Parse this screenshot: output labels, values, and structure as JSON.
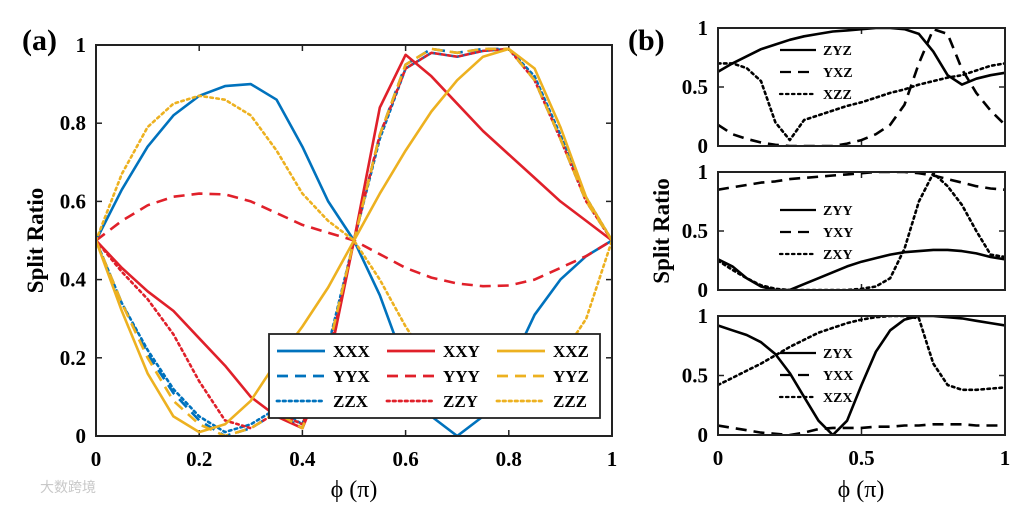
{
  "figure": {
    "watermark": "大数跨境"
  },
  "chart_data": [
    {
      "id": "a",
      "panel_label": "(a)",
      "type": "line",
      "title": "",
      "xlabel": "ϕ (π)",
      "ylabel": "Split Ratio",
      "xlim": [
        0,
        1
      ],
      "ylim": [
        0,
        1
      ],
      "xticks": [
        "0",
        "0.2",
        "0.4",
        "0.6",
        "0.8",
        "1"
      ],
      "yticks": [
        "0",
        "0.2",
        "0.4",
        "0.6",
        "0.8",
        "1"
      ],
      "legend_position": "bottom-right",
      "colors": {
        "blue": "#0072BD",
        "red": "#E0202A",
        "yellow": "#EDB120"
      },
      "x": [
        0,
        0.05,
        0.1,
        0.15,
        0.2,
        0.25,
        0.3,
        0.35,
        0.4,
        0.45,
        0.5,
        0.55,
        0.6,
        0.65,
        0.7,
        0.75,
        0.8,
        0.85,
        0.9,
        0.95,
        1
      ],
      "series": [
        {
          "name": "XXX",
          "color": "blue",
          "dash": "solid",
          "values": [
            0.5,
            0.63,
            0.74,
            0.82,
            0.87,
            0.895,
            0.9,
            0.86,
            0.74,
            0.6,
            0.5,
            0.36,
            0.18,
            0.05,
            0.0,
            0.05,
            0.17,
            0.31,
            0.4,
            0.46,
            0.5
          ]
        },
        {
          "name": "YYX",
          "color": "blue",
          "dash": "dashed",
          "values": [
            0.5,
            0.34,
            0.21,
            0.11,
            0.04,
            0.0,
            0.02,
            0.06,
            0.02,
            0.22,
            0.5,
            0.77,
            0.95,
            0.99,
            0.98,
            0.99,
            0.99,
            0.91,
            0.76,
            0.6,
            0.5
          ]
        },
        {
          "name": "ZZX",
          "color": "blue",
          "dash": "dotted",
          "values": [
            0.5,
            0.34,
            0.22,
            0.12,
            0.05,
            0.01,
            0.03,
            0.07,
            0.03,
            0.23,
            0.5,
            0.76,
            0.94,
            0.98,
            0.97,
            0.985,
            0.99,
            0.92,
            0.77,
            0.61,
            0.5
          ]
        },
        {
          "name": "XXY",
          "color": "red",
          "dash": "solid",
          "values": [
            0.5,
            0.43,
            0.37,
            0.32,
            0.25,
            0.18,
            0.1,
            0.05,
            0.02,
            0.18,
            0.5,
            0.84,
            0.975,
            0.92,
            0.85,
            0.78,
            0.72,
            0.66,
            0.6,
            0.55,
            0.5
          ]
        },
        {
          "name": "YYY",
          "color": "red",
          "dash": "dashed",
          "values": [
            0.5,
            0.55,
            0.59,
            0.612,
            0.62,
            0.618,
            0.6,
            0.57,
            0.54,
            0.52,
            0.5,
            0.465,
            0.43,
            0.405,
            0.39,
            0.383,
            0.385,
            0.4,
            0.43,
            0.46,
            0.5
          ]
        },
        {
          "name": "ZZY",
          "color": "red",
          "dash": "dotted",
          "values": [
            0.5,
            0.42,
            0.35,
            0.26,
            0.14,
            0.04,
            0.02,
            0.06,
            0.03,
            0.2,
            0.5,
            0.77,
            0.94,
            0.98,
            0.97,
            0.985,
            0.99,
            0.91,
            0.76,
            0.6,
            0.5
          ]
        },
        {
          "name": "XXZ",
          "color": "yellow",
          "dash": "solid",
          "values": [
            0.5,
            0.32,
            0.16,
            0.05,
            0.01,
            0.03,
            0.09,
            0.19,
            0.28,
            0.38,
            0.5,
            0.62,
            0.73,
            0.83,
            0.91,
            0.97,
            0.99,
            0.94,
            0.79,
            0.61,
            0.5
          ]
        },
        {
          "name": "YYZ",
          "color": "yellow",
          "dash": "dashed",
          "values": [
            0.5,
            0.34,
            0.2,
            0.09,
            0.03,
            0.0,
            0.02,
            0.06,
            0.02,
            0.22,
            0.5,
            0.77,
            0.95,
            0.99,
            0.98,
            0.99,
            0.99,
            0.91,
            0.76,
            0.6,
            0.5
          ]
        },
        {
          "name": "ZZZ",
          "color": "yellow",
          "dash": "dotted",
          "values": [
            0.5,
            0.67,
            0.79,
            0.85,
            0.87,
            0.86,
            0.82,
            0.73,
            0.62,
            0.55,
            0.5,
            0.4,
            0.28,
            0.18,
            0.12,
            0.07,
            0.05,
            0.11,
            0.2,
            0.3,
            0.5
          ]
        }
      ]
    },
    {
      "id": "b",
      "panel_label": "(b)",
      "type": "line",
      "xlabel": "ϕ (π)",
      "ylabel": "Split Ratio",
      "xlim": [
        0,
        1
      ],
      "xticks": [
        "0",
        "0.5",
        "1"
      ],
      "subplots": [
        {
          "ylim": [
            0,
            1
          ],
          "yticks": [
            "0",
            "0.5",
            "1"
          ],
          "legend_position": "top-left",
          "x": [
            0,
            0.05,
            0.1,
            0.15,
            0.2,
            0.25,
            0.3,
            0.35,
            0.4,
            0.45,
            0.5,
            0.55,
            0.6,
            0.65,
            0.7,
            0.75,
            0.8,
            0.85,
            0.9,
            0.95,
            1
          ],
          "series": [
            {
              "name": "ZYZ",
              "dash": "solid",
              "values": [
                0.63,
                0.7,
                0.76,
                0.82,
                0.86,
                0.9,
                0.93,
                0.95,
                0.97,
                0.98,
                0.99,
                1.0,
                1.0,
                0.99,
                0.95,
                0.8,
                0.6,
                0.52,
                0.57,
                0.6,
                0.62
              ]
            },
            {
              "name": "YXZ",
              "dash": "dashed",
              "values": [
                0.18,
                0.1,
                0.06,
                0.03,
                0.01,
                0.0,
                0.0,
                0.0,
                0.0,
                0.02,
                0.05,
                0.1,
                0.18,
                0.35,
                0.7,
                0.99,
                0.95,
                0.65,
                0.45,
                0.3,
                0.18
              ]
            },
            {
              "name": "XZZ",
              "dash": "dotted",
              "values": [
                0.7,
                0.7,
                0.66,
                0.55,
                0.2,
                0.05,
                0.22,
                0.26,
                0.3,
                0.34,
                0.37,
                0.41,
                0.45,
                0.48,
                0.52,
                0.55,
                0.58,
                0.6,
                0.64,
                0.68,
                0.7
              ]
            }
          ]
        },
        {
          "ylim": [
            0,
            1
          ],
          "yticks": [
            "0",
            "0.5",
            "1"
          ],
          "legend_position": "center-left",
          "x": [
            0,
            0.05,
            0.1,
            0.15,
            0.2,
            0.25,
            0.3,
            0.35,
            0.4,
            0.45,
            0.5,
            0.55,
            0.6,
            0.65,
            0.7,
            0.75,
            0.8,
            0.85,
            0.9,
            0.95,
            1
          ],
          "series": [
            {
              "name": "ZYY",
              "dash": "solid",
              "values": [
                0.26,
                0.2,
                0.1,
                0.03,
                0.0,
                0.0,
                0.05,
                0.1,
                0.15,
                0.2,
                0.24,
                0.27,
                0.3,
                0.32,
                0.33,
                0.34,
                0.34,
                0.33,
                0.31,
                0.28,
                0.26
              ]
            },
            {
              "name": "YXY",
              "dash": "dashed",
              "values": [
                0.85,
                0.87,
                0.89,
                0.91,
                0.92,
                0.94,
                0.95,
                0.96,
                0.97,
                0.98,
                0.99,
                1.0,
                1.0,
                1.0,
                0.99,
                0.97,
                0.94,
                0.91,
                0.88,
                0.86,
                0.85
              ]
            },
            {
              "name": "ZXY",
              "dash": "dotted",
              "values": [
                0.25,
                0.17,
                0.1,
                0.04,
                0.01,
                0.0,
                0.0,
                0.0,
                0.0,
                0.0,
                0.01,
                0.03,
                0.1,
                0.35,
                0.75,
                0.99,
                0.88,
                0.72,
                0.5,
                0.3,
                0.28
              ]
            }
          ]
        },
        {
          "ylim": [
            0,
            1
          ],
          "yticks": [
            "0",
            "0.5",
            "1"
          ],
          "legend_position": "center-left",
          "x": [
            0,
            0.05,
            0.1,
            0.15,
            0.2,
            0.25,
            0.3,
            0.35,
            0.4,
            0.45,
            0.5,
            0.55,
            0.6,
            0.65,
            0.7,
            0.75,
            0.8,
            0.85,
            0.9,
            0.95,
            1
          ],
          "series": [
            {
              "name": "ZYX",
              "dash": "solid",
              "values": [
                0.92,
                0.88,
                0.84,
                0.78,
                0.68,
                0.52,
                0.32,
                0.12,
                0.0,
                0.12,
                0.42,
                0.7,
                0.88,
                0.97,
                1.0,
                1.0,
                0.99,
                0.98,
                0.96,
                0.94,
                0.92
              ]
            },
            {
              "name": "YXX",
              "dash": "dashed",
              "values": [
                0.08,
                0.06,
                0.04,
                0.02,
                0.01,
                0.0,
                0.02,
                0.05,
                0.06,
                0.06,
                0.06,
                0.07,
                0.07,
                0.08,
                0.08,
                0.09,
                0.09,
                0.09,
                0.08,
                0.08,
                0.08
              ]
            },
            {
              "name": "XZX",
              "dash": "dotted",
              "values": [
                0.42,
                0.48,
                0.54,
                0.6,
                0.67,
                0.74,
                0.8,
                0.86,
                0.9,
                0.94,
                0.97,
                0.99,
                1.0,
                1.0,
                0.98,
                0.6,
                0.42,
                0.38,
                0.38,
                0.39,
                0.4
              ]
            }
          ]
        }
      ]
    }
  ]
}
